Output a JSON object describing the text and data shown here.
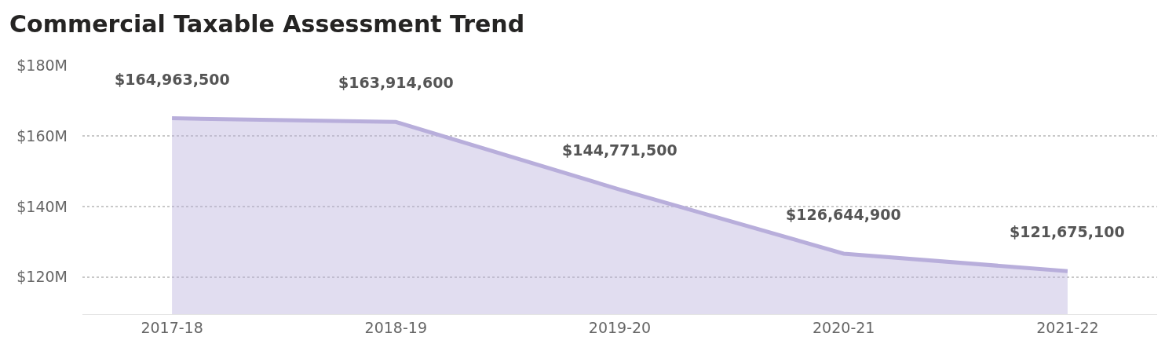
{
  "chart_data": {
    "type": "area",
    "title": "Commercial Taxable Assessment Trend",
    "categories": [
      "2017-18",
      "2018-19",
      "2019-20",
      "2020-21",
      "2021-22"
    ],
    "series": [
      {
        "color": "#b8aedb",
        "values": [
          164963500,
          163914600,
          144771500,
          126644900,
          121675100
        ],
        "value_labels": [
          "$164,963,500",
          "$163,914,600",
          "$144,771,500",
          "$126,644,900",
          "$121,675,100"
        ]
      }
    ],
    "ylim": [
      109500000,
      180000000
    ],
    "yticks": [
      {
        "value": 120000000,
        "label": "$120M"
      },
      {
        "value": 140000000,
        "label": "$140M"
      },
      {
        "value": 160000000,
        "label": "$160M"
      },
      {
        "value": 180000000,
        "label": "$180M"
      }
    ],
    "grid": "y",
    "marker": "none",
    "line_style": "solid"
  }
}
